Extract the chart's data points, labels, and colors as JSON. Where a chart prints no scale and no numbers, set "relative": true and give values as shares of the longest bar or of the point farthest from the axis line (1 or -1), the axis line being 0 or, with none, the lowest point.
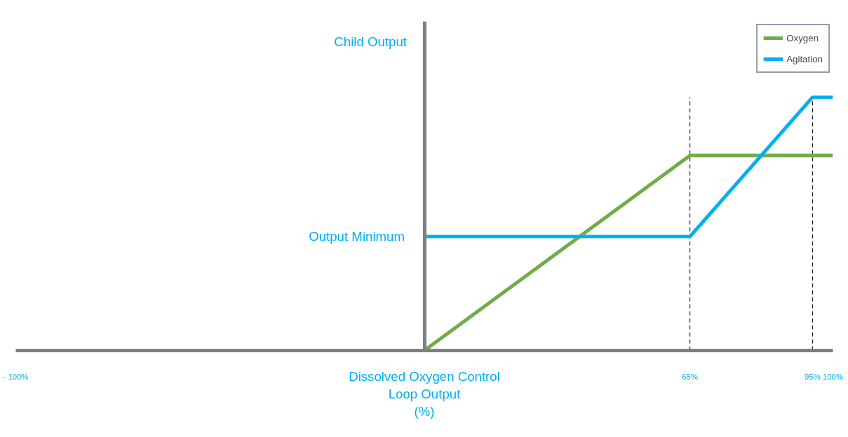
{
  "chart_data": {
    "type": "line",
    "relative": true,
    "xlabel": "Dissolved Oxygen Control\nLoop Output\n(%)",
    "ylabel": "Child Output",
    "xlim": [
      -100,
      100
    ],
    "xticks": [
      {
        "value": -100,
        "label": "- 100%"
      },
      {
        "value": 65,
        "label": "65%"
      },
      {
        "value": 95,
        "label": "95%"
      },
      {
        "value": 100,
        "label": "100%"
      }
    ],
    "tick_labels": "x",
    "grid": false,
    "legend": "top right",
    "marker": "none",
    "line_style": "solid",
    "series": [
      {
        "name": "Oxygen",
        "color": "#70ad47",
        "x": [
          0,
          65,
          100
        ],
        "values": [
          0,
          0.77,
          0.77
        ]
      },
      {
        "name": "Agitation",
        "color": "#00b0f0",
        "x": [
          0,
          65,
          95,
          100
        ],
        "values": [
          0.45,
          0.45,
          1,
          1
        ]
      }
    ],
    "ref_lines": [
      {
        "axis": "x",
        "value": 65,
        "color": "#000000",
        "line_style": "dashed"
      },
      {
        "axis": "x",
        "value": 95,
        "color": "#000000",
        "line_style": "dashed"
      }
    ],
    "annotations": [
      {
        "text": "Output Minimum",
        "x": 0,
        "y": 0.45
      }
    ]
  }
}
